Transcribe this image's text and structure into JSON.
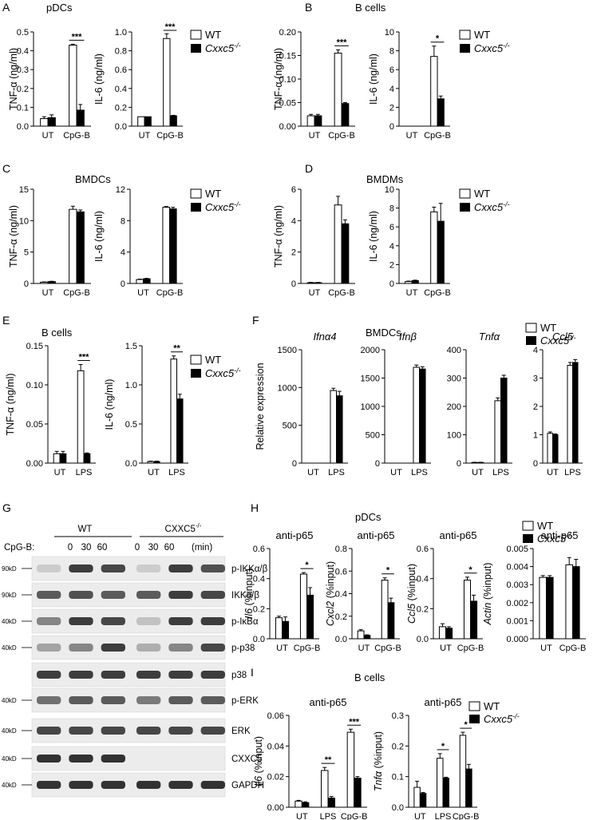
{
  "colors": {
    "wt": "#ffffff",
    "ko": "#000000",
    "stroke": "#000000",
    "blot_bg": "#ececec",
    "blot_band": "#1e1e1e"
  },
  "panel_labels": [
    "A",
    "B",
    "C",
    "D",
    "E",
    "F",
    "G",
    "H",
    "I"
  ],
  "panel_titles": {
    "A": "pDCs",
    "B": "B cells",
    "C": "BMDCs",
    "D": "BMDMs",
    "E": "B cells",
    "F": "BMDCs",
    "H": "pDCs",
    "I": "B cells"
  },
  "legend": {
    "wt": "WT",
    "ko": "Cxxc5",
    "ko_sup": "-/-"
  },
  "chart_data": [
    {
      "id": "A1",
      "type": "bar",
      "ylabel": "TNF-α (ng/ml)",
      "categories": [
        "UT",
        "CpG-B"
      ],
      "ylim": [
        0,
        0.5
      ],
      "yticks": [
        "0.0",
        "0.1",
        "0.2",
        "0.3",
        "0.4",
        "0.5"
      ],
      "series": [
        {
          "name": "WT",
          "values": [
            0.04,
            0.43
          ],
          "err": [
            0.01,
            0.005
          ]
        },
        {
          "name": "Cxxc5-/-",
          "values": [
            0.045,
            0.085
          ],
          "err": [
            0.015,
            0.03
          ]
        }
      ],
      "sig": [
        {
          "category": 1,
          "label": "***"
        }
      ]
    },
    {
      "id": "A2",
      "type": "bar",
      "ylabel": "IL-6 (ng/ml)",
      "categories": [
        "UT",
        "CpG-B"
      ],
      "ylim": [
        0,
        1.0
      ],
      "yticks": [
        "0.0",
        "0.2",
        "0.4",
        "0.6",
        "0.8",
        "1.0"
      ],
      "series": [
        {
          "name": "WT",
          "values": [
            0.1,
            0.93
          ],
          "err": [
            0,
            0.05
          ]
        },
        {
          "name": "Cxxc5-/-",
          "values": [
            0.1,
            0.11
          ],
          "err": [
            0,
            0.005
          ]
        }
      ],
      "sig": [
        {
          "category": 1,
          "label": "***"
        }
      ]
    },
    {
      "id": "B1",
      "type": "bar",
      "ylabel": "TNF-α (ng/ml)",
      "categories": [
        "UT",
        "CpG-B"
      ],
      "ylim": [
        0,
        0.2
      ],
      "yticks": [
        "0.00",
        "0.05",
        "0.10",
        "0.15",
        "0.20"
      ],
      "series": [
        {
          "name": "WT",
          "values": [
            0.022,
            0.155
          ],
          "err": [
            0.003,
            0.007
          ]
        },
        {
          "name": "Cxxc5-/-",
          "values": [
            0.022,
            0.048
          ],
          "err": [
            0.003,
            0.002
          ]
        }
      ],
      "sig": [
        {
          "category": 1,
          "label": "***"
        }
      ]
    },
    {
      "id": "B2",
      "type": "bar",
      "ylabel": "IL-6 (ng/ml)",
      "categories": [
        "UT",
        "CpG-B"
      ],
      "ylim": [
        0,
        10
      ],
      "yticks": [
        "0",
        "2",
        "4",
        "6",
        "8",
        "10"
      ],
      "series": [
        {
          "name": "WT",
          "values": [
            0,
            7.4
          ],
          "err": [
            0,
            1.1
          ]
        },
        {
          "name": "Cxxc5-/-",
          "values": [
            0,
            2.9
          ],
          "err": [
            0,
            0.3
          ]
        }
      ],
      "sig": [
        {
          "category": 1,
          "label": "*"
        }
      ]
    },
    {
      "id": "C1",
      "type": "bar",
      "ylabel": "TNF-α (ng/ml)",
      "categories": [
        "UT",
        "CpG-B"
      ],
      "ylim": [
        0,
        15
      ],
      "yticks": [
        "0",
        "5",
        "10",
        "15"
      ],
      "series": [
        {
          "name": "WT",
          "values": [
            0.2,
            11.8
          ],
          "err": [
            0.05,
            0.5
          ]
        },
        {
          "name": "Cxxc5-/-",
          "values": [
            0.3,
            11.4
          ],
          "err": [
            0.05,
            0.3
          ]
        }
      ],
      "sig": []
    },
    {
      "id": "C2",
      "type": "bar",
      "ylabel": "IL-6 (ng/ml)",
      "categories": [
        "UT",
        "CpG-B"
      ],
      "ylim": [
        0,
        12
      ],
      "yticks": [
        "0",
        "4",
        "8",
        "12"
      ],
      "series": [
        {
          "name": "WT",
          "values": [
            0.5,
            9.7
          ],
          "err": [
            0.05,
            0.1
          ]
        },
        {
          "name": "Cxxc5-/-",
          "values": [
            0.6,
            9.5
          ],
          "err": [
            0.05,
            0.2
          ]
        }
      ],
      "sig": []
    },
    {
      "id": "D1",
      "type": "bar",
      "ylabel": "TNF-α (ng/ml)",
      "categories": [
        "UT",
        "CpG-B"
      ],
      "ylim": [
        0,
        6
      ],
      "yticks": [
        "0",
        "2",
        "4",
        "6"
      ],
      "series": [
        {
          "name": "WT",
          "values": [
            0.05,
            5.0
          ],
          "err": [
            0.02,
            0.55
          ]
        },
        {
          "name": "Cxxc5-/-",
          "values": [
            0.05,
            3.8
          ],
          "err": [
            0.02,
            0.25
          ]
        }
      ],
      "sig": []
    },
    {
      "id": "D2",
      "type": "bar",
      "ylabel": "IL-6 (ng/ml)",
      "categories": [
        "UT",
        "CpG-B"
      ],
      "ylim": [
        0,
        10
      ],
      "yticks": [
        "0",
        "2",
        "4",
        "6",
        "8",
        "10"
      ],
      "series": [
        {
          "name": "WT",
          "values": [
            0.2,
            7.6
          ],
          "err": [
            0.05,
            0.5
          ]
        },
        {
          "name": "Cxxc5-/-",
          "values": [
            0.3,
            6.6
          ],
          "err": [
            0.05,
            1.9
          ]
        }
      ],
      "sig": []
    },
    {
      "id": "E1",
      "type": "bar",
      "ylabel": "TNF-α (ng/ml)",
      "categories": [
        "UT",
        "LPS"
      ],
      "ylim": [
        0,
        0.15
      ],
      "yticks": [
        "0.00",
        "0.05",
        "0.10",
        "0.15"
      ],
      "series": [
        {
          "name": "WT",
          "values": [
            0.012,
            0.118
          ],
          "err": [
            0.003,
            0.008
          ]
        },
        {
          "name": "Cxxc5-/-",
          "values": [
            0.012,
            0.012
          ],
          "err": [
            0.003,
            0.001
          ]
        }
      ],
      "sig": [
        {
          "category": 1,
          "label": "***"
        }
      ]
    },
    {
      "id": "E2",
      "type": "bar",
      "ylabel": "IL-6 (ng/ml)",
      "categories": [
        "UT",
        "LPS"
      ],
      "ylim": [
        0,
        1.5
      ],
      "yticks": [
        "0.0",
        "0.5",
        "1.0",
        "1.5"
      ],
      "series": [
        {
          "name": "WT",
          "values": [
            0.02,
            1.33
          ],
          "err": [
            0.005,
            0.04
          ]
        },
        {
          "name": "Cxxc5-/-",
          "values": [
            0.02,
            0.82
          ],
          "err": [
            0.005,
            0.06
          ]
        }
      ],
      "sig": [
        {
          "category": 1,
          "label": "**"
        }
      ]
    },
    {
      "id": "F1",
      "type": "bar",
      "title": "Ifnα4",
      "ylabel": "Relative expression",
      "categories": [
        "UT",
        "LPS"
      ],
      "ylim": [
        0,
        1500
      ],
      "yticks": [
        "0",
        "500",
        "1000",
        "1500"
      ],
      "series": [
        {
          "name": "WT",
          "values": [
            0,
            960
          ],
          "err": [
            0,
            30
          ]
        },
        {
          "name": "Cxxc5-/-",
          "values": [
            0,
            890
          ],
          "err": [
            0,
            60
          ]
        }
      ],
      "sig": []
    },
    {
      "id": "F2",
      "type": "bar",
      "title": "Ifnβ",
      "ylabel": "",
      "categories": [
        "UT",
        "LPS"
      ],
      "ylim": [
        0,
        2000
      ],
      "yticks": [
        "0",
        "500",
        "1000",
        "1500",
        "2000"
      ],
      "series": [
        {
          "name": "WT",
          "values": [
            0,
            1690
          ],
          "err": [
            0,
            40
          ]
        },
        {
          "name": "Cxxc5-/-",
          "values": [
            0,
            1660
          ],
          "err": [
            0,
            40
          ]
        }
      ],
      "sig": []
    },
    {
      "id": "F3",
      "type": "bar",
      "title": "Tnfα",
      "ylabel": "",
      "categories": [
        "UT",
        "LPS"
      ],
      "ylim": [
        0,
        400
      ],
      "yticks": [
        "0",
        "100",
        "200",
        "300",
        "400"
      ],
      "series": [
        {
          "name": "WT",
          "values": [
            2,
            220
          ],
          "err": [
            1,
            10
          ]
        },
        {
          "name": "Cxxc5-/-",
          "values": [
            2,
            300
          ],
          "err": [
            1,
            10
          ]
        }
      ],
      "sig": []
    },
    {
      "id": "F4",
      "type": "bar",
      "title": "Ccl5",
      "ylabel": "",
      "categories": [
        "UT",
        "LPS"
      ],
      "ylim": [
        0,
        4
      ],
      "yticks": [
        "0",
        "1",
        "2",
        "3",
        "4"
      ],
      "series": [
        {
          "name": "WT",
          "values": [
            1.05,
            3.45
          ],
          "err": [
            0.05,
            0.1
          ]
        },
        {
          "name": "Cxxc5-/-",
          "values": [
            1.0,
            3.55
          ],
          "err": [
            0.03,
            0.1
          ]
        }
      ],
      "sig": []
    },
    {
      "id": "H1",
      "type": "bar",
      "title": "anti-p65",
      "ylabel": "Il6 (%input)",
      "categories": [
        "UT",
        "CpG-B"
      ],
      "ylim": [
        0,
        0.6
      ],
      "yticks": [
        "0.0",
        "0.2",
        "0.4",
        "0.6"
      ],
      "series": [
        {
          "name": "WT",
          "values": [
            0.14,
            0.43
          ],
          "err": [
            0.01,
            0.01
          ]
        },
        {
          "name": "Cxxc5-/-",
          "values": [
            0.115,
            0.29
          ],
          "err": [
            0.03,
            0.05
          ]
        }
      ],
      "sig": [
        {
          "category": 1,
          "label": "*"
        }
      ]
    },
    {
      "id": "H2",
      "type": "bar",
      "title": "anti-p65",
      "ylabel": "Cxcl2 (%input)",
      "categories": [
        "UT",
        "CpG-B"
      ],
      "ylim": [
        0,
        0.8
      ],
      "yticks": [
        "0.0",
        "0.2",
        "0.4",
        "0.6",
        "0.8"
      ],
      "series": [
        {
          "name": "WT",
          "values": [
            0.07,
            0.52
          ],
          "err": [
            0.01,
            0.02
          ]
        },
        {
          "name": "Cxxc5-/-",
          "values": [
            0.03,
            0.32
          ],
          "err": [
            0.005,
            0.04
          ]
        }
      ],
      "sig": [
        {
          "category": 1,
          "label": "*"
        }
      ]
    },
    {
      "id": "H3",
      "type": "bar",
      "title": "anti-p65",
      "ylabel": "Ccl5 (%input)",
      "categories": [
        "UT",
        "CpG-B"
      ],
      "ylim": [
        0,
        0.6
      ],
      "yticks": [
        "0.0",
        "0.2",
        "0.4",
        "0.6"
      ],
      "series": [
        {
          "name": "WT",
          "values": [
            0.08,
            0.39
          ],
          "err": [
            0.02,
            0.02
          ]
        },
        {
          "name": "Cxxc5-/-",
          "values": [
            0.07,
            0.25
          ],
          "err": [
            0.01,
            0.04
          ]
        }
      ],
      "sig": [
        {
          "category": 1,
          "label": "*"
        }
      ]
    },
    {
      "id": "H4",
      "type": "bar",
      "title": "anti-p65",
      "ylabel": "Actin (%input)",
      "categories": [
        "UT",
        "CpG-B"
      ],
      "ylim": [
        0,
        0.005
      ],
      "yticks": [
        "0.000",
        "0.001",
        "0.002",
        "0.003",
        "0.004",
        "0.005"
      ],
      "series": [
        {
          "name": "WT",
          "values": [
            0.0034,
            0.0041
          ],
          "err": [
            0.0001,
            0.0004
          ]
        },
        {
          "name": "Cxxc5-/-",
          "values": [
            0.0034,
            0.004
          ],
          "err": [
            0.0001,
            0.0004
          ]
        }
      ],
      "sig": []
    },
    {
      "id": "I1",
      "type": "bar",
      "title": "anti-p65",
      "ylabel": "Il6 (%input)",
      "categories": [
        "UT",
        "LPS",
        "CpG-B"
      ],
      "ylim": [
        0,
        0.06
      ],
      "yticks": [
        "0.00",
        "0.02",
        "0.04",
        "0.06"
      ],
      "series": [
        {
          "name": "WT",
          "values": [
            0.004,
            0.024,
            0.049
          ],
          "err": [
            0.0005,
            0.002,
            0.002
          ]
        },
        {
          "name": "Cxxc5-/-",
          "values": [
            0.003,
            0.006,
            0.019
          ],
          "err": [
            0.0005,
            0.001,
            0.001
          ]
        }
      ],
      "sig": [
        {
          "category": 1,
          "label": "**"
        },
        {
          "category": 2,
          "label": "***"
        }
      ]
    },
    {
      "id": "I2",
      "type": "bar",
      "title": "anti-p65",
      "ylabel": "Tnfα (%input)",
      "categories": [
        "UT",
        "LPS",
        "CpG-B"
      ],
      "ylim": [
        0,
        0.3
      ],
      "yticks": [
        "0.0",
        "0.1",
        "0.2",
        "0.3"
      ],
      "series": [
        {
          "name": "WT",
          "values": [
            0.065,
            0.16,
            0.235
          ],
          "err": [
            0.02,
            0.015,
            0.01
          ]
        },
        {
          "name": "Cxxc5-/-",
          "values": [
            0.045,
            0.095,
            0.125
          ],
          "err": [
            0.003,
            0.003,
            0.015
          ]
        }
      ],
      "sig": [
        {
          "category": 1,
          "label": "*"
        },
        {
          "category": 2,
          "label": "*"
        }
      ]
    }
  ],
  "blot": {
    "groups": [
      "WT",
      "CXXC5"
    ],
    "group_sup": "-/-",
    "treatment_label": "CpG-B:",
    "timepoints": [
      "0",
      "30",
      "60",
      "0",
      "30",
      "60"
    ],
    "time_unit": "(min)",
    "rows": [
      {
        "protein": "p-IKKα/β",
        "marker": "90kD",
        "bands": [
          0.15,
          0.85,
          0.8,
          0.15,
          0.85,
          0.75
        ]
      },
      {
        "protein": "IKKα/β",
        "marker": "90kD",
        "bands": [
          0.7,
          0.75,
          0.7,
          0.7,
          0.85,
          0.8
        ]
      },
      {
        "protein": "p-IκBα",
        "marker": "40kD",
        "bands": [
          0.5,
          0.85,
          0.8,
          0.2,
          0.85,
          0.85
        ]
      },
      {
        "protein": "p-p38",
        "marker": "40kD",
        "bands": [
          0.35,
          0.5,
          0.85,
          0.3,
          0.5,
          0.8
        ]
      },
      {
        "protein": "p38",
        "marker": "",
        "bands": [
          0.85,
          0.85,
          0.85,
          0.85,
          0.85,
          0.85
        ]
      },
      {
        "protein": "p-ERK",
        "marker": "40kD",
        "bands": [
          0.6,
          0.7,
          0.7,
          0.55,
          0.7,
          0.7
        ]
      },
      {
        "protein": "ERK",
        "marker": "40kD",
        "bands": [
          0.8,
          0.8,
          0.8,
          0.8,
          0.8,
          0.8
        ]
      },
      {
        "protein": "CXXC5",
        "marker": "40kD",
        "bands": [
          0.9,
          0.9,
          0.9,
          0.0,
          0.0,
          0.0
        ]
      },
      {
        "protein": "GAPDH",
        "marker": "40kD",
        "bands": [
          0.9,
          0.9,
          0.9,
          0.9,
          0.9,
          0.9
        ]
      }
    ]
  }
}
